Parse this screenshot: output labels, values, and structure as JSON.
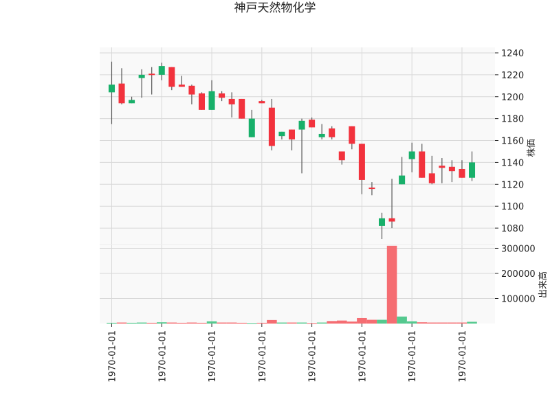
{
  "chart_data": {
    "type": "candlestick",
    "title": "神戸天然物化学",
    "price_label": "株価",
    "volume_label": "出来高",
    "up_color": "#18b06a",
    "down_color": "#f2323d",
    "volume_up_color": "#55c98f",
    "volume_down_color": "#f56d72",
    "price_ylim": [
      1065,
      1245
    ],
    "price_ticks": [
      1080,
      1100,
      1120,
      1140,
      1160,
      1180,
      1200,
      1220,
      1240
    ],
    "volume_ylim": [
      0,
      315000
    ],
    "volume_ticks": [
      100000,
      200000,
      300000
    ],
    "x_tick_labels": [
      "1970-01-01",
      "1970-01-01",
      "1970-01-01",
      "1970-01-01",
      "1970-01-01",
      "1970-01-01",
      "1970-01-01",
      "1970-01-01"
    ],
    "x_tick_indices": [
      0,
      5,
      10,
      15,
      20,
      25,
      30,
      35
    ],
    "grid": true,
    "candles": [
      {
        "o": 1204,
        "h": 1232,
        "l": 1175,
        "c": 1211,
        "v": 3000
      },
      {
        "o": 1212,
        "h": 1226,
        "l": 1193,
        "c": 1194,
        "v": 4000
      },
      {
        "o": 1194,
        "h": 1200,
        "l": 1194,
        "c": 1197,
        "v": 3000
      },
      {
        "o": 1217,
        "h": 1225,
        "l": 1199,
        "c": 1220,
        "v": 4000
      },
      {
        "o": 1221,
        "h": 1227,
        "l": 1202,
        "c": 1220,
        "v": 3000
      },
      {
        "o": 1220,
        "h": 1231,
        "l": 1215,
        "c": 1228,
        "v": 5000
      },
      {
        "o": 1227,
        "h": 1227,
        "l": 1206,
        "c": 1209,
        "v": 4000
      },
      {
        "o": 1211,
        "h": 1219,
        "l": 1209,
        "c": 1209,
        "v": 3000
      },
      {
        "o": 1210,
        "h": 1211,
        "l": 1193,
        "c": 1202,
        "v": 4000
      },
      {
        "o": 1203,
        "h": 1204,
        "l": 1188,
        "c": 1188,
        "v": 3000
      },
      {
        "o": 1188,
        "h": 1215,
        "l": 1188,
        "c": 1205,
        "v": 9000
      },
      {
        "o": 1203,
        "h": 1205,
        "l": 1196,
        "c": 1199,
        "v": 4000
      },
      {
        "o": 1198,
        "h": 1204,
        "l": 1181,
        "c": 1193,
        "v": 4000
      },
      {
        "o": 1198,
        "h": 1198,
        "l": 1180,
        "c": 1180,
        "v": 3000
      },
      {
        "o": 1163,
        "h": 1188,
        "l": 1163,
        "c": 1180,
        "v": 2000
      },
      {
        "o": 1196,
        "h": 1197,
        "l": 1194,
        "c": 1194,
        "v": 3000
      },
      {
        "o": 1190,
        "h": 1198,
        "l": 1151,
        "c": 1155,
        "v": 14000
      },
      {
        "o": 1164,
        "h": 1168,
        "l": 1161,
        "c": 1168,
        "v": 4000
      },
      {
        "o": 1170,
        "h": 1170,
        "l": 1151,
        "c": 1161,
        "v": 4000
      },
      {
        "o": 1170,
        "h": 1180,
        "l": 1130,
        "c": 1178,
        "v": 4000
      },
      {
        "o": 1179,
        "h": 1181,
        "l": 1172,
        "c": 1172,
        "v": 2000
      },
      {
        "o": 1163,
        "h": 1175,
        "l": 1161,
        "c": 1166,
        "v": 4000
      },
      {
        "o": 1171,
        "h": 1173,
        "l": 1161,
        "c": 1163,
        "v": 10000
      },
      {
        "o": 1150,
        "h": 1150,
        "l": 1138,
        "c": 1142,
        "v": 12000
      },
      {
        "o": 1173,
        "h": 1173,
        "l": 1152,
        "c": 1157,
        "v": 8000
      },
      {
        "o": 1157,
        "h": 1157,
        "l": 1111,
        "c": 1124,
        "v": 22000
      },
      {
        "o": 1117,
        "h": 1122,
        "l": 1110,
        "c": 1116,
        "v": 15000
      },
      {
        "o": 1082,
        "h": 1094,
        "l": 1070,
        "c": 1089,
        "v": 15000
      },
      {
        "o": 1089,
        "h": 1125,
        "l": 1080,
        "c": 1086,
        "v": 310000
      },
      {
        "o": 1120,
        "h": 1145,
        "l": 1120,
        "c": 1128,
        "v": 28000
      },
      {
        "o": 1143,
        "h": 1158,
        "l": 1131,
        "c": 1150,
        "v": 9000
      },
      {
        "o": 1150,
        "h": 1157,
        "l": 1126,
        "c": 1126,
        "v": 5000
      },
      {
        "o": 1130,
        "h": 1146,
        "l": 1120,
        "c": 1121,
        "v": 4000
      },
      {
        "o": 1137,
        "h": 1144,
        "l": 1121,
        "c": 1135,
        "v": 4000
      },
      {
        "o": 1136,
        "h": 1142,
        "l": 1122,
        "c": 1132,
        "v": 4000
      },
      {
        "o": 1134,
        "h": 1142,
        "l": 1126,
        "c": 1126,
        "v": 4000
      },
      {
        "o": 1126,
        "h": 1150,
        "l": 1123,
        "c": 1140,
        "v": 7000
      }
    ]
  }
}
